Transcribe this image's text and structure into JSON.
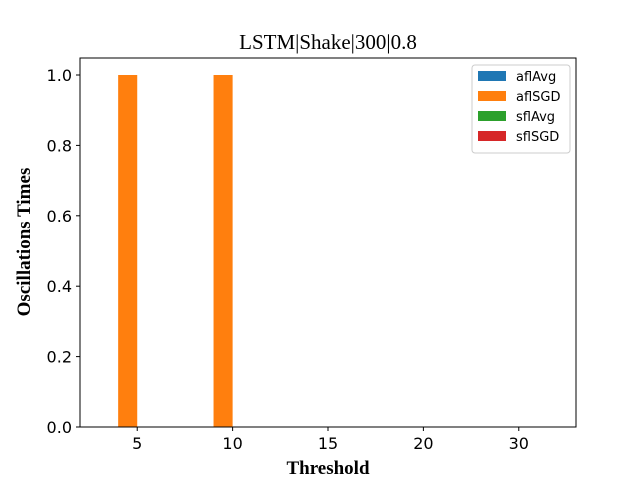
{
  "chart_data": {
    "type": "bar",
    "title": "LSTM|Shake|300|0.8",
    "xlabel": "Threshold",
    "ylabel": "Oscillations Times",
    "categories": [
      "5",
      "10",
      "15",
      "20",
      "30"
    ],
    "ylim": [
      0,
      1.0
    ],
    "yticks": [
      "0.0",
      "0.2",
      "0.4",
      "0.6",
      "0.8",
      "1.0"
    ],
    "grid": false,
    "legend_position": "top-right",
    "series": [
      {
        "name": "aflAvg",
        "color": "#1f77b4",
        "values": [
          0,
          0,
          0,
          0,
          0
        ]
      },
      {
        "name": "aflSGD",
        "color": "#ff7f0e",
        "values": [
          1,
          1,
          0,
          0,
          0
        ]
      },
      {
        "name": "sflAvg",
        "color": "#2ca02c",
        "values": [
          0,
          0,
          0,
          0,
          0
        ]
      },
      {
        "name": "sflSGD",
        "color": "#d62728",
        "values": [
          0,
          0,
          0,
          0,
          0
        ]
      }
    ]
  }
}
